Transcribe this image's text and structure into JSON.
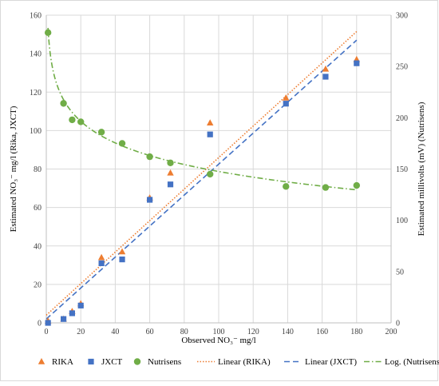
{
  "chart_data": {
    "type": "scatter",
    "xlabel": "Observed  NO₃⁻ mg/l",
    "ylabel_left": "Estimated NO₃⁻ mg/l (Rika, JXCT)",
    "ylabel_right": "Estimated millivolts (mV) (Nutrisens)",
    "xlim": [
      0,
      200
    ],
    "ylim_left": [
      0,
      160
    ],
    "ylim_right": [
      0,
      300
    ],
    "x_ticks": [
      "0",
      "20",
      "40",
      "60",
      "80",
      "100",
      "120",
      "140",
      "160",
      "180",
      "200"
    ],
    "y_left_ticks": [
      "0",
      "20",
      "40",
      "60",
      "80",
      "100",
      "120",
      "140",
      "160"
    ],
    "y_right_ticks": [
      "0",
      "50",
      "100",
      "150",
      "200",
      "250",
      "300"
    ],
    "grid": true,
    "legend_position": "bottom",
    "series": [
      {
        "name": "RIKA",
        "axis": "left",
        "marker": "triangle",
        "color": "#ED7D31",
        "x": [
          1,
          10,
          15,
          20,
          32,
          44,
          60,
          72,
          95,
          139,
          162,
          180
        ],
        "y": [
          1,
          2,
          6,
          10,
          34,
          37,
          65,
          78,
          104,
          117,
          132,
          137
        ]
      },
      {
        "name": "JXCT",
        "axis": "left",
        "marker": "square",
        "color": "#4472C4",
        "x": [
          1,
          10,
          15,
          20,
          32,
          44,
          60,
          72,
          95,
          139,
          162,
          180
        ],
        "y": [
          0,
          2,
          5,
          9,
          31,
          33,
          64,
          72,
          98,
          114,
          128,
          135
        ]
      },
      {
        "name": "Nutrisens",
        "axis": "right",
        "marker": "circle",
        "color": "#70AD47",
        "x": [
          1,
          10,
          15,
          20,
          32,
          44,
          60,
          72,
          95,
          139,
          162,
          180
        ],
        "y": [
          283,
          214,
          198,
          196,
          186,
          175,
          162,
          156,
          145,
          133,
          132,
          134
        ]
      }
    ],
    "trendlines": [
      {
        "name": "Linear (RIKA)",
        "type": "linear",
        "axis": "left",
        "color": "#ED7D31",
        "style": "dotted",
        "x": [
          0,
          180
        ],
        "y": [
          4,
          151.5
        ]
      },
      {
        "name": "Linear (JXCT)",
        "type": "linear",
        "axis": "left",
        "color": "#4472C4",
        "style": "dashed",
        "x": [
          0,
          180
        ],
        "y": [
          2,
          147
        ]
      },
      {
        "name": "Log. (Nutrisens)",
        "type": "logarithmic",
        "axis": "right",
        "color": "#70AD47",
        "style": "dash-dot",
        "coef_a": -30.4,
        "coef_b": 287.6,
        "x_range": [
          1,
          180
        ]
      }
    ]
  },
  "legend": [
    {
      "label": "RIKA",
      "icon": "triangle-marker-icon"
    },
    {
      "label": "JXCT",
      "icon": "square-marker-icon"
    },
    {
      "label": "Nutrisens",
      "icon": "circle-marker-icon"
    },
    {
      "label": "Linear (RIKA)",
      "icon": "dotted-line-icon"
    },
    {
      "label": "Linear (JXCT)",
      "icon": "dashed-line-icon"
    },
    {
      "label": "Log. (Nutrisens)",
      "icon": "dash-dot-line-icon"
    }
  ]
}
